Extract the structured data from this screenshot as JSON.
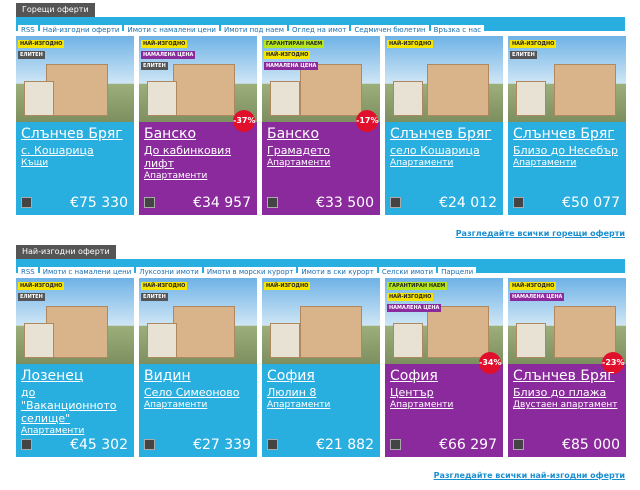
{
  "sections": [
    {
      "tab": "Горещи оферти",
      "nav": [
        "RSS",
        "Най-изгодни оферти",
        "Имоти с намалени цени",
        "Имоти под наем",
        "Оглед на имот",
        "Седмичен бюлетин",
        "Връзка с нас"
      ],
      "cards": [
        {
          "badges": [
            {
              "label": "НАЙ-ИЗГОДНО",
              "color": "#f5e400"
            },
            {
              "label": "ЕЛИТЕН",
              "color": "#555555"
            }
          ],
          "city": "Слънчев Бряг",
          "place": "с. Кошарица",
          "kind": "Къщи",
          "price": "€75 330",
          "color": "#29aee0"
        },
        {
          "badges": [
            {
              "label": "НАЙ-ИЗГОДНО",
              "color": "#f5e400"
            },
            {
              "label": "НАМАЛЕНА ЦЕНА",
              "color": "#8b2a9c"
            },
            {
              "label": "ЕЛИТЕН",
              "color": "#555555"
            }
          ],
          "city": "Банско",
          "place": "До кабинковия лифт",
          "kind": "Апартаменти",
          "price": "€34 957",
          "discount": "-37%",
          "color": "#8b2a9c"
        },
        {
          "badges": [
            {
              "label": "ГАРАНТИРАН НАЕМ",
              "color": "#b5e61d"
            },
            {
              "label": "НАЙ-ИЗГОДНО",
              "color": "#f5e400"
            },
            {
              "label": "НАМАЛЕНА ЦЕНА",
              "color": "#8b2a9c"
            }
          ],
          "city": "Банско",
          "place": "Грамадето",
          "kind": "Апартаменти",
          "price": "€33 500",
          "discount": "-17%",
          "color": "#8b2a9c"
        },
        {
          "badges": [
            {
              "label": "НАЙ-ИЗГОДНО",
              "color": "#f5e400"
            }
          ],
          "city": "Слънчев Бряг",
          "place": "село Кошарица",
          "kind": "Апартаменти",
          "price": "€24 012",
          "color": "#29aee0"
        },
        {
          "badges": [
            {
              "label": "НАЙ-ИЗГОДНО",
              "color": "#f5e400"
            },
            {
              "label": "ЕЛИТЕН",
              "color": "#555555"
            }
          ],
          "city": "Слънчев Бряг",
          "place": "Близо до Несебър",
          "kind": "Апартаменти",
          "price": "€50 077",
          "color": "#29aee0"
        }
      ],
      "link": "Разгледайте всички горещи оферти"
    },
    {
      "tab": "Най-изгодни оферти",
      "nav": [
        "RSS",
        "Имоти с намалени цени",
        "Луксозни имоти",
        "Имоти в морски курорт",
        "Имоти в ски курорт",
        "Селски имоти",
        "Парцели"
      ],
      "cards": [
        {
          "badges": [
            {
              "label": "НАЙ-ИЗГОДНО",
              "color": "#f5e400"
            },
            {
              "label": "ЕЛИТЕН",
              "color": "#555555"
            }
          ],
          "city": "Лозенец",
          "place": "до \"Ваканционното селище\"",
          "kind": "Апартаменти",
          "price": "€45 302",
          "color": "#29aee0"
        },
        {
          "badges": [
            {
              "label": "НАЙ-ИЗГОДНО",
              "color": "#f5e400"
            },
            {
              "label": "ЕЛИТЕН",
              "color": "#555555"
            }
          ],
          "city": "Видин",
          "place": "Село Симеоново",
          "kind": "Апартаменти",
          "price": "€27 339",
          "color": "#29aee0"
        },
        {
          "badges": [
            {
              "label": "НАЙ-ИЗГОДНО",
              "color": "#f5e400"
            }
          ],
          "city": "София",
          "place": "Люлин 8",
          "kind": "Апартаменти",
          "price": "€21 882",
          "color": "#29aee0"
        },
        {
          "badges": [
            {
              "label": "ГАРАНТИРАН НАЕМ",
              "color": "#b5e61d"
            },
            {
              "label": "НАЙ-ИЗГОДНО",
              "color": "#f5e400"
            },
            {
              "label": "НАМАЛЕНА ЦЕНА",
              "color": "#8b2a9c"
            }
          ],
          "city": "София",
          "place": "Център",
          "kind": "Апартаменти",
          "price": "€66 297",
          "discount": "-34%",
          "color": "#8b2a9c"
        },
        {
          "badges": [
            {
              "label": "НАЙ-ИЗГОДНО",
              "color": "#f5e400"
            },
            {
              "label": "НАМАЛЕНА ЦЕНА",
              "color": "#8b2a9c"
            }
          ],
          "city": "Слънчев Бряг",
          "place": "Близо до плажа",
          "kind": "Двустаен апартамент",
          "price": "€85 000",
          "discount": "-23%",
          "color": "#8b2a9c"
        }
      ],
      "link": "Разгледайте всички най-изгодни оферти"
    }
  ]
}
